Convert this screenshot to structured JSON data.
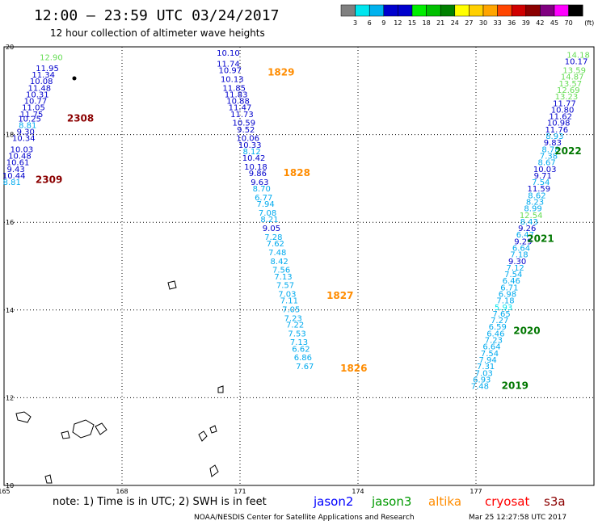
{
  "header": {
    "title": "12:00 – 23:59 UTC 03/24/2017",
    "subtitle": "12 hour collection of altimeter wave heights"
  },
  "colorbar": {
    "labels": [
      "3",
      "6",
      "9",
      "12",
      "15",
      "18",
      "21",
      "24",
      "27",
      "30",
      "33",
      "36",
      "39",
      "42",
      "45",
      "70"
    ],
    "colors": [
      "#808080",
      "#00e5ee",
      "#00b2ee",
      "#0000cd",
      "#0000cd",
      "#00ee00",
      "#00c000",
      "#008000",
      "#ffff00",
      "#ffd000",
      "#ffa500",
      "#ff4500",
      "#d00000",
      "#8b0000",
      "#800080",
      "#ff00ff",
      "#000000"
    ],
    "unit": "(ft)"
  },
  "chart_data": {
    "type": "scatter",
    "title": "12:00 – 23:59 UTC 03/24/2017",
    "subtitle": "12 hour collection of altimeter wave heights",
    "xlim": [
      165,
      180
    ],
    "ylim": [
      10,
      20
    ],
    "xticks": [
      "165",
      "168",
      "171",
      "174",
      "177"
    ],
    "yticks": [
      "10",
      "12",
      "14",
      "16",
      "18",
      "20"
    ],
    "grid": true,
    "series": [
      {
        "name": "2308/2309",
        "points": [
          {
            "x": 166.2,
            "y": 19.7,
            "v": "12.90",
            "c": "#66dd55"
          },
          {
            "x": 166.1,
            "y": 19.45,
            "v": "11.95",
            "c": "#0000cc"
          },
          {
            "x": 166.0,
            "y": 19.3,
            "v": "11.34",
            "c": "#0000cc"
          },
          {
            "x": 165.95,
            "y": 19.15,
            "v": "10.08",
            "c": "#0000cc"
          },
          {
            "x": 165.9,
            "y": 19.0,
            "v": "11.48",
            "c": "#0000cc"
          },
          {
            "x": 165.85,
            "y": 18.85,
            "v": "10.31",
            "c": "#0000cc"
          },
          {
            "x": 165.8,
            "y": 18.7,
            "v": "10.77",
            "c": "#0000cc"
          },
          {
            "x": 165.75,
            "y": 18.55,
            "v": "11.05",
            "c": "#0000cc"
          },
          {
            "x": 165.7,
            "y": 18.4,
            "v": "11.75",
            "c": "#0000cc"
          },
          {
            "x": 165.65,
            "y": 18.3,
            "v": "10.25",
            "c": "#0000cc"
          },
          {
            "x": 165.6,
            "y": 18.15,
            "v": "8.81",
            "c": "#00aaee"
          },
          {
            "x": 165.55,
            "y": 18.0,
            "v": "9.30",
            "c": "#0000cc"
          },
          {
            "x": 165.5,
            "y": 17.85,
            "v": "10.34",
            "c": "#0000cc"
          },
          {
            "x": 165.45,
            "y": 17.6,
            "v": "10.03",
            "c": "#0000cc"
          },
          {
            "x": 165.4,
            "y": 17.45,
            "v": "10.48",
            "c": "#0000cc"
          },
          {
            "x": 165.35,
            "y": 17.3,
            "v": "10.61",
            "c": "#0000cc"
          },
          {
            "x": 165.3,
            "y": 17.15,
            "v": "9.43",
            "c": "#0000cc"
          },
          {
            "x": 165.25,
            "y": 17.0,
            "v": "10.44",
            "c": "#0000cc"
          },
          {
            "x": 165.2,
            "y": 16.85,
            "v": "8.81",
            "c": "#00aaee"
          }
        ]
      },
      {
        "name": "1829/1828/1827/1826",
        "points": [
          {
            "x": 170.7,
            "y": 19.8,
            "v": "10.10",
            "c": "#0000cc"
          },
          {
            "x": 170.7,
            "y": 19.55,
            "v": "11.74",
            "c": "#0000cc"
          },
          {
            "x": 170.75,
            "y": 19.4,
            "v": "10.97",
            "c": "#0000cc"
          },
          {
            "x": 170.8,
            "y": 19.2,
            "v": "10.13",
            "c": "#0000cc"
          },
          {
            "x": 170.85,
            "y": 19.0,
            "v": "11.85",
            "c": "#0000cc"
          },
          {
            "x": 170.9,
            "y": 18.85,
            "v": "11.83",
            "c": "#0000cc"
          },
          {
            "x": 170.95,
            "y": 18.7,
            "v": "10.88",
            "c": "#0000cc"
          },
          {
            "x": 171.0,
            "y": 18.55,
            "v": "11.47",
            "c": "#0000cc"
          },
          {
            "x": 171.05,
            "y": 18.4,
            "v": "11.73",
            "c": "#0000cc"
          },
          {
            "x": 171.1,
            "y": 18.2,
            "v": "10.59",
            "c": "#0000cc"
          },
          {
            "x": 171.15,
            "y": 18.05,
            "v": "9.52",
            "c": "#0000cc"
          },
          {
            "x": 171.2,
            "y": 17.85,
            "v": "10.06",
            "c": "#0000cc"
          },
          {
            "x": 171.25,
            "y": 17.7,
            "v": "10.33",
            "c": "#0000cc"
          },
          {
            "x": 171.3,
            "y": 17.55,
            "v": "8.12",
            "c": "#00aaee"
          },
          {
            "x": 171.35,
            "y": 17.4,
            "v": "10.42",
            "c": "#0000cc"
          },
          {
            "x": 171.4,
            "y": 17.2,
            "v": "10.18",
            "c": "#0000cc"
          },
          {
            "x": 171.45,
            "y": 17.05,
            "v": "9.86",
            "c": "#0000cc"
          },
          {
            "x": 171.5,
            "y": 16.85,
            "v": "9.63",
            "c": "#0000cc"
          },
          {
            "x": 171.55,
            "y": 16.7,
            "v": "8.70",
            "c": "#00aaee"
          },
          {
            "x": 171.6,
            "y": 16.5,
            "v": "6.77",
            "c": "#00aaee"
          },
          {
            "x": 171.65,
            "y": 16.35,
            "v": "7.94",
            "c": "#00aaee"
          },
          {
            "x": 171.7,
            "y": 16.15,
            "v": "7.08",
            "c": "#00aaee"
          },
          {
            "x": 171.75,
            "y": 16.0,
            "v": "8.21",
            "c": "#00aaee"
          },
          {
            "x": 171.8,
            "y": 15.8,
            "v": "9.05",
            "c": "#0000cc"
          },
          {
            "x": 171.85,
            "y": 15.6,
            "v": "7.28",
            "c": "#00aaee"
          },
          {
            "x": 171.9,
            "y": 15.45,
            "v": "7.62",
            "c": "#00aaee"
          },
          {
            "x": 171.95,
            "y": 15.25,
            "v": "7.48",
            "c": "#00aaee"
          },
          {
            "x": 172.0,
            "y": 15.05,
            "v": "8.42",
            "c": "#00aaee"
          },
          {
            "x": 172.05,
            "y": 14.85,
            "v": "7.56",
            "c": "#00aaee"
          },
          {
            "x": 172.1,
            "y": 14.7,
            "v": "7.13",
            "c": "#00aaee"
          },
          {
            "x": 172.15,
            "y": 14.5,
            "v": "7.57",
            "c": "#00aaee"
          },
          {
            "x": 172.2,
            "y": 14.3,
            "v": "7.03",
            "c": "#00aaee"
          },
          {
            "x": 172.25,
            "y": 14.15,
            "v": "7.11",
            "c": "#00aaee"
          },
          {
            "x": 172.3,
            "y": 13.95,
            "v": "7.05",
            "c": "#00aaee"
          },
          {
            "x": 172.35,
            "y": 13.75,
            "v": "7.23",
            "c": "#00aaee"
          },
          {
            "x": 172.4,
            "y": 13.6,
            "v": "7.22",
            "c": "#00aaee"
          },
          {
            "x": 172.45,
            "y": 13.4,
            "v": "7.53",
            "c": "#00aaee"
          },
          {
            "x": 172.5,
            "y": 13.2,
            "v": "7.13",
            "c": "#00aaee"
          },
          {
            "x": 172.55,
            "y": 13.05,
            "v": "6.62",
            "c": "#00aaee"
          },
          {
            "x": 172.6,
            "y": 12.85,
            "v": "6.86",
            "c": "#00aaee"
          },
          {
            "x": 172.65,
            "y": 12.65,
            "v": "7.67",
            "c": "#00aaee"
          }
        ]
      },
      {
        "name": "2022/2021/2020/2019",
        "points": [
          {
            "x": 179.6,
            "y": 19.75,
            "v": "14.18",
            "c": "#66dd55"
          },
          {
            "x": 179.55,
            "y": 19.6,
            "v": "10.17",
            "c": "#0000cc"
          },
          {
            "x": 179.5,
            "y": 19.4,
            "v": "13.59",
            "c": "#66dd55"
          },
          {
            "x": 179.45,
            "y": 19.25,
            "v": "14.87",
            "c": "#66dd55"
          },
          {
            "x": 179.4,
            "y": 19.1,
            "v": "13.57",
            "c": "#66dd55"
          },
          {
            "x": 179.35,
            "y": 18.95,
            "v": "12.69",
            "c": "#66dd55"
          },
          {
            "x": 179.3,
            "y": 18.8,
            "v": "13.23",
            "c": "#66dd55"
          },
          {
            "x": 179.25,
            "y": 18.65,
            "v": "11.77",
            "c": "#0000cc"
          },
          {
            "x": 179.2,
            "y": 18.5,
            "v": "10.80",
            "c": "#0000cc"
          },
          {
            "x": 179.15,
            "y": 18.35,
            "v": "11.62",
            "c": "#0000cc"
          },
          {
            "x": 179.1,
            "y": 18.2,
            "v": "10.98",
            "c": "#0000cc"
          },
          {
            "x": 179.05,
            "y": 18.05,
            "v": "11.76",
            "c": "#0000cc"
          },
          {
            "x": 179.0,
            "y": 17.9,
            "v": "8.93",
            "c": "#00aaee"
          },
          {
            "x": 178.95,
            "y": 17.75,
            "v": "9.83",
            "c": "#0000cc"
          },
          {
            "x": 178.9,
            "y": 17.6,
            "v": "8.78",
            "c": "#00aaee"
          },
          {
            "x": 178.85,
            "y": 17.45,
            "v": "7.38",
            "c": "#00aaee"
          },
          {
            "x": 178.8,
            "y": 17.3,
            "v": "8.67",
            "c": "#00aaee"
          },
          {
            "x": 178.75,
            "y": 17.15,
            "v": "10.03",
            "c": "#0000cc"
          },
          {
            "x": 178.7,
            "y": 17.0,
            "v": "9.71",
            "c": "#0000cc"
          },
          {
            "x": 178.65,
            "y": 16.85,
            "v": "7.54",
            "c": "#00aaee"
          },
          {
            "x": 178.6,
            "y": 16.7,
            "v": "11.59",
            "c": "#0000cc"
          },
          {
            "x": 178.55,
            "y": 16.55,
            "v": "8.62",
            "c": "#00aaee"
          },
          {
            "x": 178.5,
            "y": 16.4,
            "v": "8.23",
            "c": "#00aaee"
          },
          {
            "x": 178.45,
            "y": 16.25,
            "v": "8.99",
            "c": "#00aaee"
          },
          {
            "x": 178.4,
            "y": 16.1,
            "v": "12.54",
            "c": "#66dd55"
          },
          {
            "x": 178.35,
            "y": 15.95,
            "v": "8.43",
            "c": "#00aaee"
          },
          {
            "x": 178.3,
            "y": 15.8,
            "v": "9.26",
            "c": "#0000cc"
          },
          {
            "x": 178.25,
            "y": 15.65,
            "v": "6.47",
            "c": "#00aaee"
          },
          {
            "x": 178.2,
            "y": 15.5,
            "v": "9.29",
            "c": "#0000cc"
          },
          {
            "x": 178.15,
            "y": 15.35,
            "v": "6.64",
            "c": "#00aaee"
          },
          {
            "x": 178.1,
            "y": 15.2,
            "v": "7.18",
            "c": "#00aaee"
          },
          {
            "x": 178.05,
            "y": 15.05,
            "v": "9.30",
            "c": "#0000cc"
          },
          {
            "x": 178.0,
            "y": 14.9,
            "v": "7.12",
            "c": "#00aaee"
          },
          {
            "x": 177.95,
            "y": 14.75,
            "v": "7.54",
            "c": "#00aaee"
          },
          {
            "x": 177.9,
            "y": 14.6,
            "v": "6.46",
            "c": "#00aaee"
          },
          {
            "x": 177.85,
            "y": 14.45,
            "v": "6.71",
            "c": "#00aaee"
          },
          {
            "x": 177.8,
            "y": 14.3,
            "v": "6.98",
            "c": "#00aaee"
          },
          {
            "x": 177.75,
            "y": 14.15,
            "v": "7.18",
            "c": "#00aaee"
          },
          {
            "x": 177.7,
            "y": 14.0,
            "v": "5.93",
            "c": "#00e5ee"
          },
          {
            "x": 177.65,
            "y": 13.85,
            "v": "7.65",
            "c": "#00aaee"
          },
          {
            "x": 177.6,
            "y": 13.7,
            "v": "7.27",
            "c": "#00aaee"
          },
          {
            "x": 177.55,
            "y": 13.55,
            "v": "6.59",
            "c": "#00aaee"
          },
          {
            "x": 177.5,
            "y": 13.4,
            "v": "6.46",
            "c": "#00aaee"
          },
          {
            "x": 177.45,
            "y": 13.25,
            "v": "7.23",
            "c": "#00aaee"
          },
          {
            "x": 177.4,
            "y": 13.1,
            "v": "6.64",
            "c": "#00aaee"
          },
          {
            "x": 177.35,
            "y": 12.95,
            "v": "7.54",
            "c": "#00aaee"
          },
          {
            "x": 177.3,
            "y": 12.8,
            "v": "7.94",
            "c": "#00aaee"
          },
          {
            "x": 177.25,
            "y": 12.65,
            "v": "7.31",
            "c": "#00aaee"
          },
          {
            "x": 177.2,
            "y": 12.5,
            "v": "7.03",
            "c": "#00aaee"
          },
          {
            "x": 177.15,
            "y": 12.35,
            "v": "6.93",
            "c": "#00aaee"
          },
          {
            "x": 177.1,
            "y": 12.2,
            "v": "7.48",
            "c": "#00aaee"
          }
        ]
      }
    ],
    "pass_labels": [
      {
        "text": "2308",
        "x": 166.6,
        "y": 18.3,
        "c": "#8b0000"
      },
      {
        "text": "2309",
        "x": 165.8,
        "y": 16.9,
        "c": "#8b0000"
      },
      {
        "text": "1829",
        "x": 171.7,
        "y": 19.35,
        "c": "#ff8c00"
      },
      {
        "text": "1828",
        "x": 172.1,
        "y": 17.05,
        "c": "#ff8c00"
      },
      {
        "text": "1827",
        "x": 173.2,
        "y": 14.25,
        "c": "#ff8c00"
      },
      {
        "text": "1826",
        "x": 173.55,
        "y": 12.6,
        "c": "#ff8c00"
      },
      {
        "text": "2022",
        "x": 179.0,
        "y": 17.55,
        "c": "#007700"
      },
      {
        "text": "2021",
        "x": 178.3,
        "y": 15.55,
        "c": "#007700"
      },
      {
        "text": "2020",
        "x": 177.95,
        "y": 13.45,
        "c": "#007700"
      },
      {
        "text": "2019",
        "x": 177.65,
        "y": 12.2,
        "c": "#007700"
      }
    ]
  },
  "footer": {
    "note": "note: 1) Time is in UTC; 2) SWH is in feet",
    "satellites": [
      {
        "name": "jason2",
        "color": "#0000ff"
      },
      {
        "name": "jason3",
        "color": "#009900"
      },
      {
        "name": "altika",
        "color": "#ff8c00"
      },
      {
        "name": "cryosat",
        "color": "#ff0000"
      },
      {
        "name": "s3a",
        "color": "#8b0000"
      }
    ],
    "credit": "NOAA/NESDIS Center for Satellite Applications and Research",
    "timestamp": "Mar 25 12:27:58 UTC 2017"
  }
}
